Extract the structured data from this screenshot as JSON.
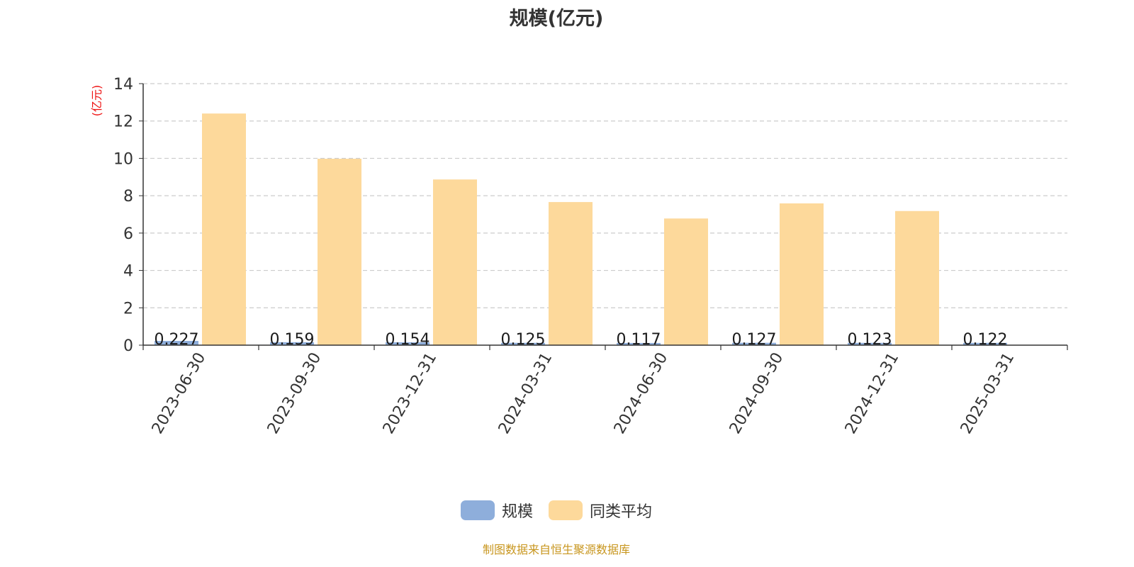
{
  "title": "规模(亿元)",
  "source_note": "制图数据来自恒生聚源数据库",
  "colors": {
    "series_scale": "#8eaedb",
    "series_avg": "#fdd99b",
    "unit_label": "#ee1111",
    "source": "#c8961e"
  },
  "legend": [
    {
      "label": "规模",
      "color": "#8eaedb"
    },
    {
      "label": "同类平均",
      "color": "#fdd99b"
    }
  ],
  "chart_data": {
    "type": "bar",
    "title": "规模(亿元)",
    "ylabel": "(亿元)",
    "xlabel": "",
    "ylim": [
      0,
      14
    ],
    "yticks": [
      0,
      2,
      4,
      6,
      8,
      10,
      12,
      14
    ],
    "grid": true,
    "legend_position": "bottom",
    "categories": [
      "2023-06-30",
      "2023-09-30",
      "2023-12-31",
      "2024-03-31",
      "2024-06-30",
      "2024-09-30",
      "2024-12-31",
      "2025-03-31"
    ],
    "series": [
      {
        "name": "规模",
        "values": [
          0.227,
          0.159,
          0.154,
          0.125,
          0.117,
          0.127,
          0.123,
          0.122
        ],
        "labels": [
          "0.227",
          "0.159",
          "0.154",
          "0.125",
          "0.117",
          "0.127",
          "0.123",
          "0.122"
        ]
      },
      {
        "name": "同类平均",
        "values": [
          12.4,
          9.98,
          8.87,
          7.66,
          6.78,
          7.59,
          7.18,
          null
        ]
      }
    ]
  }
}
